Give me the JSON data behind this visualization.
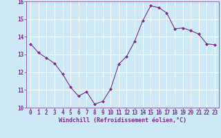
{
  "x": [
    0,
    1,
    2,
    3,
    4,
    5,
    6,
    7,
    8,
    9,
    10,
    11,
    12,
    13,
    14,
    15,
    16,
    17,
    18,
    19,
    20,
    21,
    22,
    23
  ],
  "y": [
    13.6,
    13.1,
    12.8,
    12.5,
    11.9,
    11.15,
    10.65,
    10.9,
    10.2,
    10.35,
    11.05,
    12.45,
    12.9,
    13.75,
    14.9,
    15.75,
    15.65,
    15.35,
    14.45,
    14.5,
    14.35,
    14.15,
    13.6,
    13.55
  ],
  "xlabel": "Windchill (Refroidissement éolien,°C)",
  "ylim": [
    10.0,
    16.0
  ],
  "xlim_min": -0.5,
  "xlim_max": 23.5,
  "yticks": [
    10,
    11,
    12,
    13,
    14,
    15,
    16
  ],
  "xticks": [
    0,
    1,
    2,
    3,
    4,
    5,
    6,
    7,
    8,
    9,
    10,
    11,
    12,
    13,
    14,
    15,
    16,
    17,
    18,
    19,
    20,
    21,
    22,
    23
  ],
  "line_color": "#7b2d8b",
  "marker": "D",
  "marker_size": 2.0,
  "bg_color": "#cce9f5",
  "grid_color": "#ffffff",
  "tick_color": "#7b2d8b",
  "label_color": "#7b2d8b",
  "font_family": "monospace",
  "tick_fontsize": 5.5,
  "xlabel_fontsize": 6.0
}
